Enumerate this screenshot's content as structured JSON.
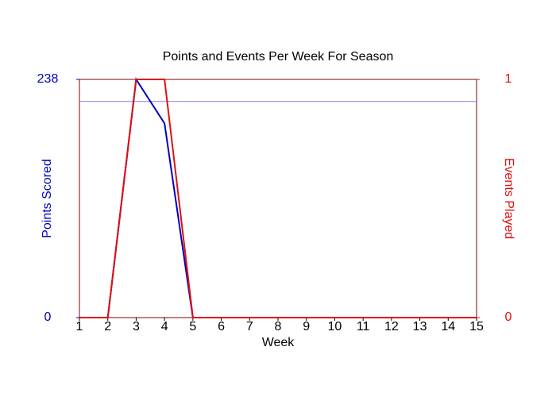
{
  "chart_data": {
    "type": "line",
    "title": "Points and Events Per Week For Season",
    "x_label": "Week",
    "y_label": "Points Scored",
    "y2_label": "Events Played",
    "x": [
      1,
      2,
      3,
      4,
      5,
      6,
      7,
      8,
      9,
      10,
      11,
      12,
      13,
      14,
      15
    ],
    "xlim": [
      1,
      15
    ],
    "xticks": [
      1,
      2,
      3,
      4,
      5,
      6,
      7,
      8,
      9,
      10,
      11,
      12,
      13,
      14,
      15
    ],
    "ylim": [
      0,
      238
    ],
    "yticks": [
      0,
      238
    ],
    "y2lim": [
      0,
      1
    ],
    "y2ticks": [
      0,
      1
    ],
    "reference_line": {
      "value": 216,
      "color": "#8080d0"
    },
    "series": [
      {
        "name": "Points Scored",
        "color": "#0000c0",
        "values": [
          0,
          0,
          238,
          194,
          0,
          0,
          0,
          0,
          0,
          0,
          0,
          0,
          0,
          0,
          0
        ]
      },
      {
        "name": "Events Played",
        "color": "#e01010",
        "axis": "y2",
        "values": [
          0,
          0,
          1,
          1,
          0,
          0,
          0,
          0,
          0,
          0,
          0,
          0,
          0,
          0,
          0
        ]
      }
    ]
  }
}
